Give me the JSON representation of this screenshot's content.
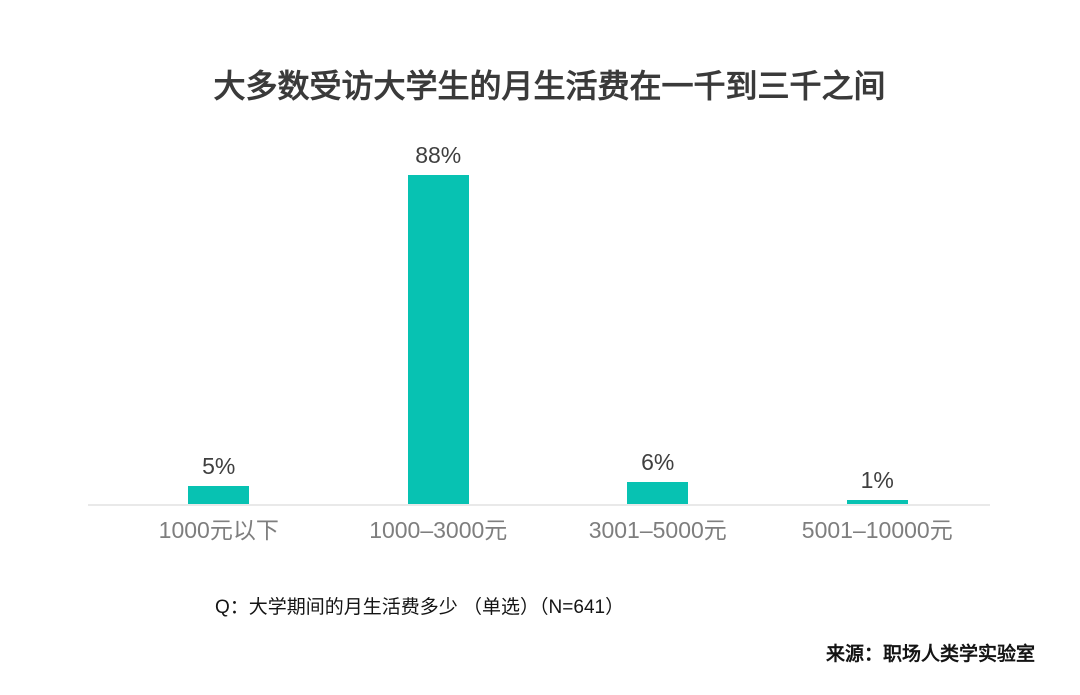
{
  "chart_data": {
    "type": "bar",
    "title": "大多数受访大学生的月生活费在一千到三千之间",
    "categories": [
      "1000元以下",
      "1000–3000元",
      "3001–5000元",
      "5001–10000元"
    ],
    "values": [
      5,
      88,
      6,
      1
    ],
    "value_labels": [
      "5%",
      "88%",
      "6%",
      "1%"
    ],
    "bar_color": "#07c2b2",
    "ylim": [
      0,
      100
    ],
    "grid": false,
    "legend": false
  },
  "footer": {
    "question": "Q：大学期间的月生活费多少 （单选）（N=641）",
    "source": "来源：职场人类学实验室"
  }
}
